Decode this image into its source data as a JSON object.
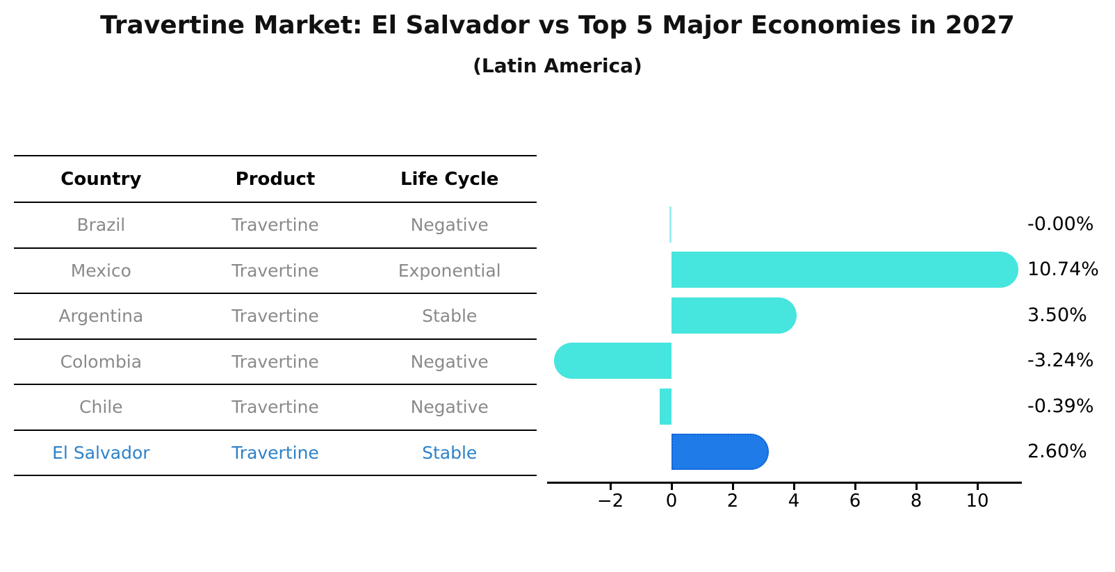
{
  "header": {
    "title": "Travertine Market: El Salvador vs Top 5 Major Economies in 2027",
    "subtitle": "(Latin America)"
  },
  "table": {
    "columns": [
      "Country",
      "Product",
      "Life Cycle"
    ],
    "rows": [
      {
        "country": "Brazil",
        "product": "Travertine",
        "life_cycle": "Negative",
        "highlight": false
      },
      {
        "country": "Mexico",
        "product": "Travertine",
        "life_cycle": "Exponential",
        "highlight": false
      },
      {
        "country": "Argentina",
        "product": "Travertine",
        "life_cycle": "Stable",
        "highlight": false
      },
      {
        "country": "Colombia",
        "product": "Travertine",
        "life_cycle": "Negative",
        "highlight": false
      },
      {
        "country": "Chile",
        "product": "Travertine",
        "life_cycle": "Negative",
        "highlight": false
      },
      {
        "country": "El Salvador",
        "product": "Travertine",
        "life_cycle": "Stable",
        "highlight": true
      }
    ]
  },
  "chart_data": {
    "type": "bar",
    "orientation": "horizontal",
    "title": "Travertine Market: El Salvador vs Top 5 Major Economies in 2027",
    "subtitle": "(Latin America)",
    "categories": [
      "Brazil",
      "Mexico",
      "Argentina",
      "Colombia",
      "Chile",
      "El Salvador"
    ],
    "values": [
      -0.0,
      10.74,
      3.5,
      -3.24,
      -0.39,
      2.6
    ],
    "value_labels": [
      "-0.00%",
      "10.74%",
      "3.50%",
      "-3.24%",
      "-0.39%",
      "2.60%"
    ],
    "highlight_index": 5,
    "xticks": [
      -2,
      0,
      2,
      4,
      6,
      8,
      10
    ],
    "xlim": [
      -4.1,
      11.5
    ],
    "grid": false,
    "legend": "none",
    "colors": {
      "bar": "#46e5de",
      "bar_zero": "rgba(70,229,222,0.55)",
      "highlight_bar": "#1e7be8",
      "highlight_border": "#0d5fd6",
      "highlight_text": "#2e82c9",
      "table_text": "#8a8a8a",
      "axis": "#000000"
    }
  }
}
